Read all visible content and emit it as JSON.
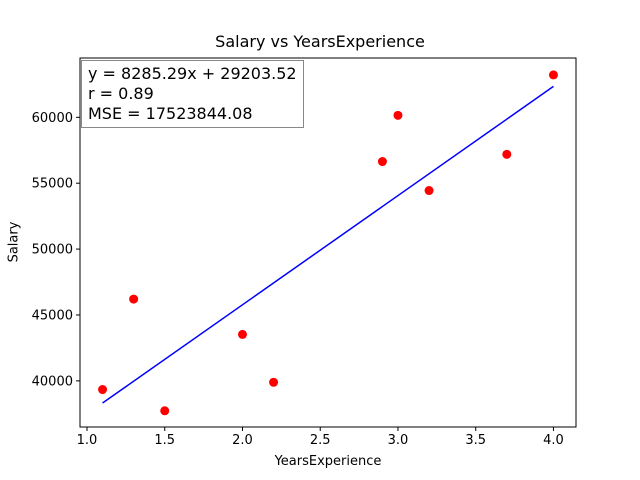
{
  "chart_data": {
    "type": "scatter",
    "title": "Salary vs YearsExperience",
    "xlabel": "YearsExperience",
    "ylabel": "Salary",
    "xlim": [
      0.955,
      4.145
    ],
    "ylim": [
      36500,
      64500
    ],
    "xticks": [
      1.0,
      1.5,
      2.0,
      2.5,
      3.0,
      3.5,
      4.0
    ],
    "xtick_labels": [
      "1.0",
      "1.5",
      "2.0",
      "2.5",
      "3.0",
      "3.5",
      "4.0"
    ],
    "yticks": [
      40000,
      45000,
      50000,
      55000,
      60000
    ],
    "ytick_labels": [
      "40000",
      "45000",
      "50000",
      "55000",
      "60000"
    ],
    "grid": false,
    "points": {
      "color": "#ff0000",
      "x": [
        1.1,
        1.3,
        1.5,
        2.0,
        2.2,
        2.9,
        3.0,
        3.2,
        3.7,
        4.0
      ],
      "y": [
        39343,
        46205,
        37731,
        43525,
        39891,
        56642,
        60150,
        54445,
        57189,
        63218
      ]
    },
    "fit_line": {
      "color": "#0000ff",
      "slope": 8285.29,
      "intercept": 29203.52,
      "x_range": [
        1.1,
        4.0
      ]
    },
    "annotation": {
      "lines": [
        "y = 8285.29x + 29203.52",
        "r = 0.89",
        "MSE = 17523844.08"
      ],
      "placement": "top-left"
    }
  }
}
